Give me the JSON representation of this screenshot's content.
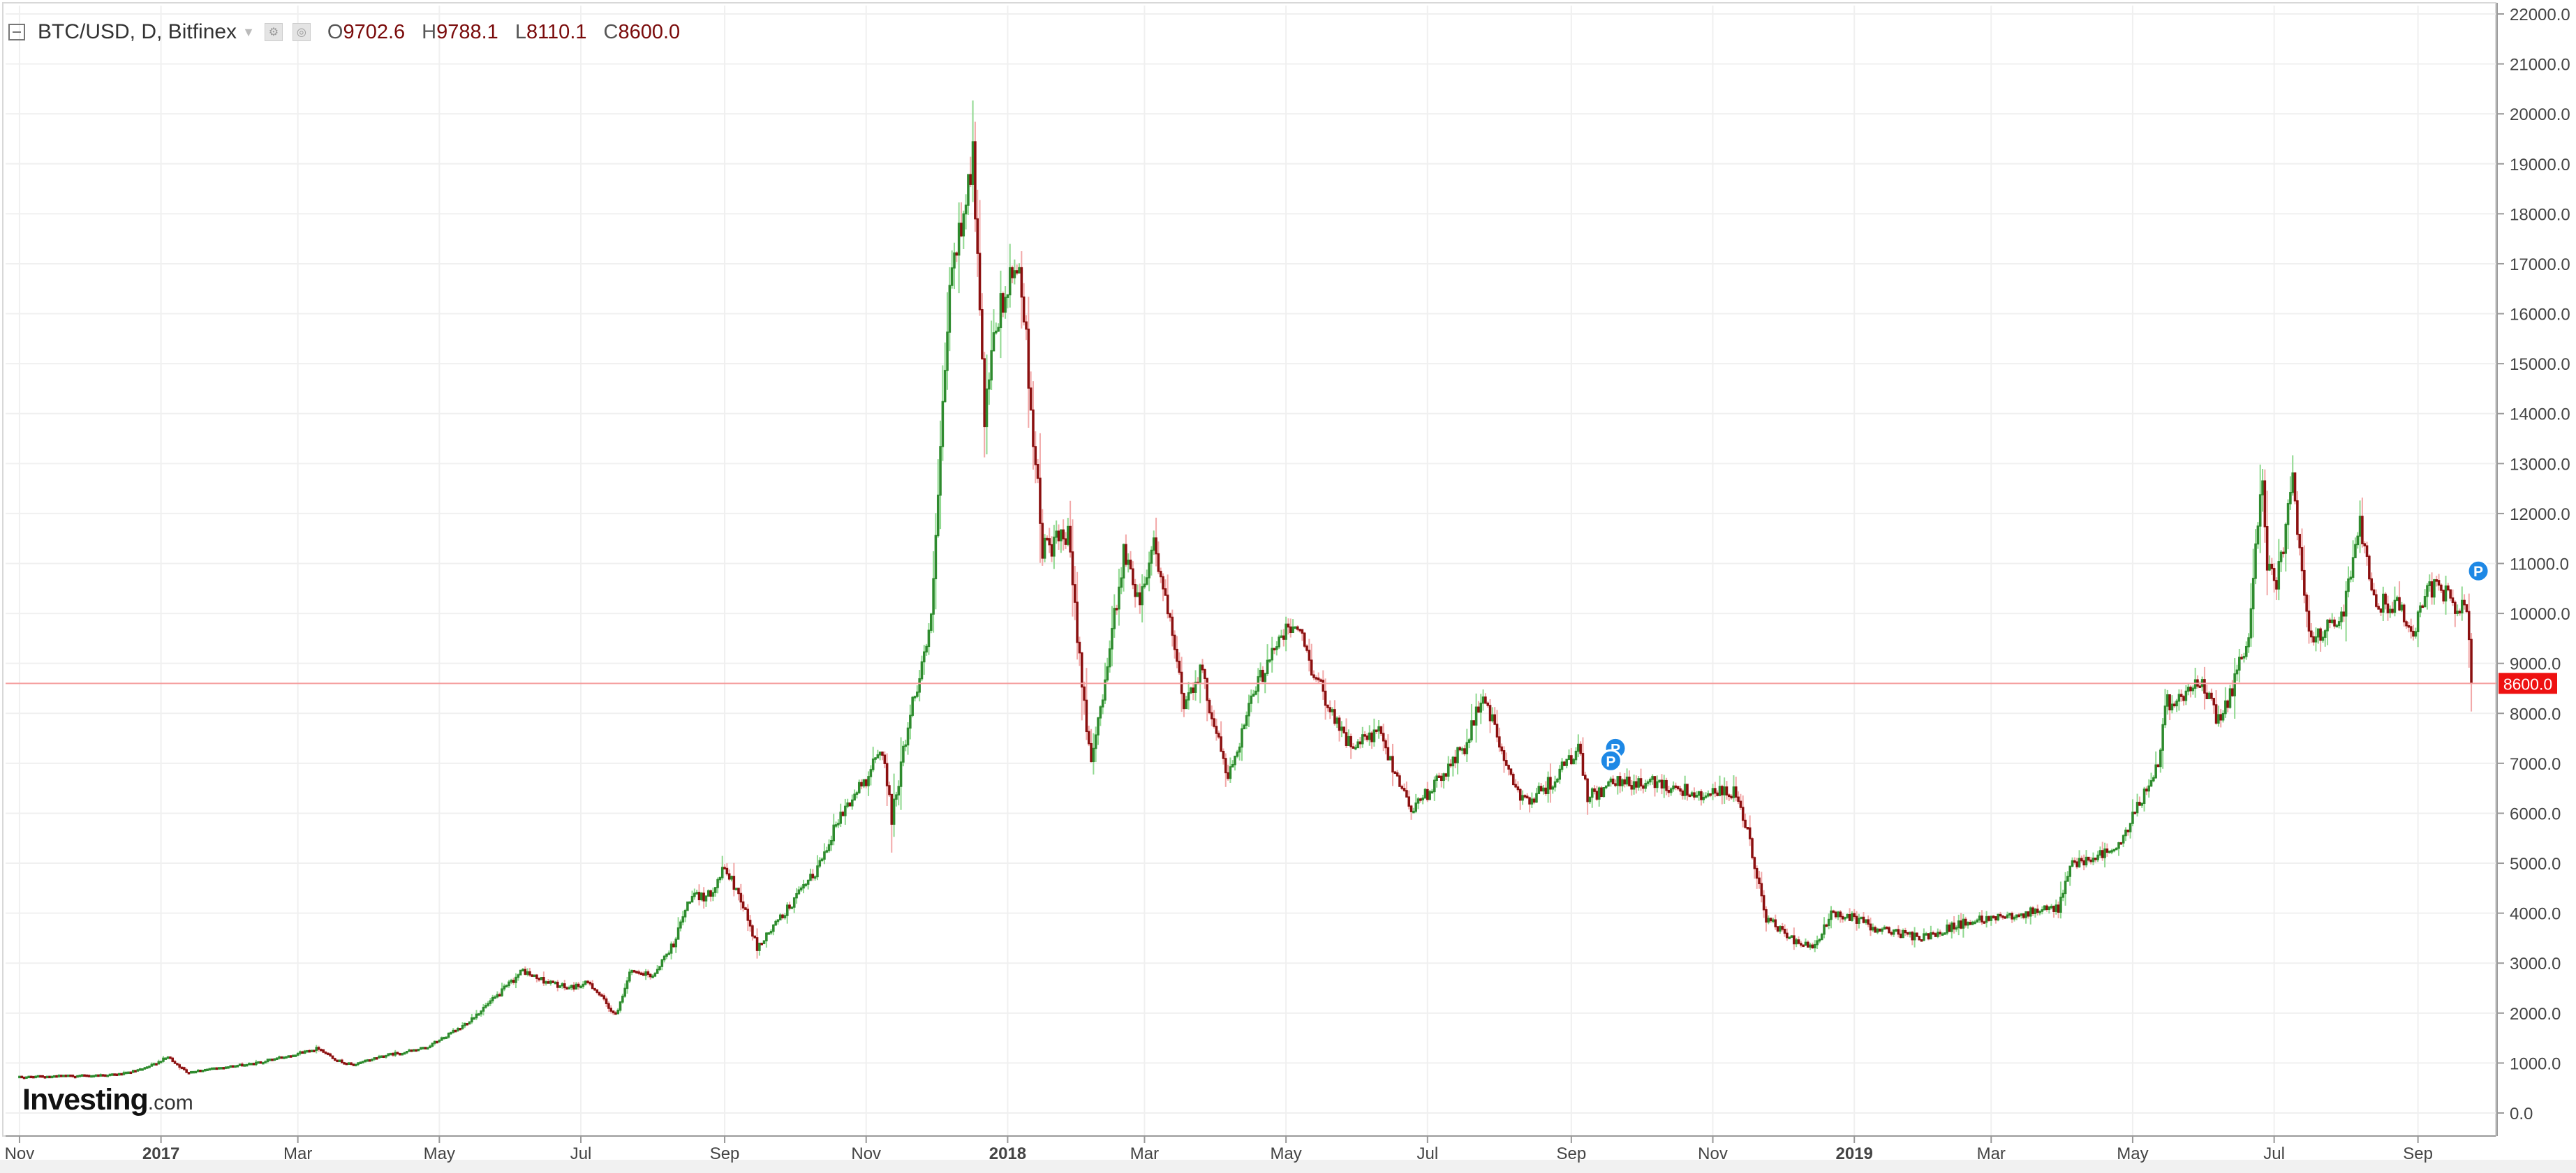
{
  "header": {
    "symbol": "BTC/USD, D, Bitfinex",
    "ohlc": [
      {
        "key": "O",
        "value": "9702.6"
      },
      {
        "key": "H",
        "value": "9788.1"
      },
      {
        "key": "L",
        "value": "8110.1"
      },
      {
        "key": "C",
        "value": "8600.0"
      }
    ]
  },
  "logo": {
    "main": "Investing",
    "suffix": ".com"
  },
  "colors": {
    "up": "#2e8b2e",
    "down": "#8b1010",
    "wick_up": "#8fd88f",
    "wick_down": "#f2a8a8",
    "price_line": "#f5a0a0",
    "price_label_bg": "#ee1111",
    "marker": "#1e88e5",
    "grid": "#f0f0f0",
    "axis_text": "#444444"
  },
  "chart_data": {
    "type": "candlestick",
    "title": "BTC/USD, D, Bitfinex",
    "xlabel": "",
    "ylabel": "",
    "ylim": [
      -500,
      22200
    ],
    "yticks": [
      "0.0",
      "1000.0",
      "2000.0",
      "3000.0",
      "4000.0",
      "5000.0",
      "6000.0",
      "7000.0",
      "8000.0",
      "9000.0",
      "10000.0",
      "11000.0",
      "12000.0",
      "13000.0",
      "14000.0",
      "15000.0",
      "16000.0",
      "17000.0",
      "18000.0",
      "19000.0",
      "20000.0",
      "21000.0",
      "22000.0"
    ],
    "xticks": [
      {
        "label": "Nov",
        "date": "2016-11-01",
        "bold": false
      },
      {
        "label": "2017",
        "date": "2017-01-01",
        "bold": true
      },
      {
        "label": "Mar",
        "date": "2017-03-01",
        "bold": false
      },
      {
        "label": "May",
        "date": "2017-05-01",
        "bold": false
      },
      {
        "label": "Jul",
        "date": "2017-07-01",
        "bold": false
      },
      {
        "label": "Sep",
        "date": "2017-09-01",
        "bold": false
      },
      {
        "label": "Nov",
        "date": "2017-11-01",
        "bold": false
      },
      {
        "label": "2018",
        "date": "2018-01-01",
        "bold": true
      },
      {
        "label": "Mar",
        "date": "2018-03-01",
        "bold": false
      },
      {
        "label": "May",
        "date": "2018-05-01",
        "bold": false
      },
      {
        "label": "Jul",
        "date": "2018-07-01",
        "bold": false
      },
      {
        "label": "Sep",
        "date": "2018-09-01",
        "bold": false
      },
      {
        "label": "Nov",
        "date": "2018-11-01",
        "bold": false
      },
      {
        "label": "2019",
        "date": "2019-01-01",
        "bold": true
      },
      {
        "label": "Mar",
        "date": "2019-03-01",
        "bold": false
      },
      {
        "label": "May",
        "date": "2019-05-01",
        "bold": false
      },
      {
        "label": "Jul",
        "date": "2019-07-01",
        "bold": false
      },
      {
        "label": "Sep",
        "date": "2019-09-01",
        "bold": false
      }
    ],
    "current_price": {
      "value": 8600,
      "label": "8600.0"
    },
    "markers": [
      {
        "label": "P",
        "date": "2018-09-17",
        "value": 7300
      },
      {
        "label": "P",
        "date": "2018-09-15",
        "value": 7050
      },
      {
        "label": "P",
        "date": "2019-09-24",
        "value": 10850
      }
    ],
    "series": [
      {
        "date": "2016-11-01",
        "close": 720
      },
      {
        "date": "2016-11-15",
        "close": 740
      },
      {
        "date": "2016-12-01",
        "close": 750
      },
      {
        "date": "2016-12-15",
        "close": 780
      },
      {
        "date": "2016-12-25",
        "close": 890
      },
      {
        "date": "2017-01-04",
        "close": 1120
      },
      {
        "date": "2017-01-12",
        "close": 820
      },
      {
        "date": "2017-01-25",
        "close": 900
      },
      {
        "date": "2017-02-10",
        "close": 990
      },
      {
        "date": "2017-02-25",
        "close": 1150
      },
      {
        "date": "2017-03-10",
        "close": 1300
      },
      {
        "date": "2017-03-18",
        "close": 1050
      },
      {
        "date": "2017-03-25",
        "close": 960
      },
      {
        "date": "2017-04-05",
        "close": 1130
      },
      {
        "date": "2017-04-25",
        "close": 1300
      },
      {
        "date": "2017-05-10",
        "close": 1700
      },
      {
        "date": "2017-05-25",
        "close": 2300
      },
      {
        "date": "2017-06-06",
        "close": 2850
      },
      {
        "date": "2017-06-12",
        "close": 2700
      },
      {
        "date": "2017-06-25",
        "close": 2500
      },
      {
        "date": "2017-07-05",
        "close": 2600
      },
      {
        "date": "2017-07-16",
        "close": 1950
      },
      {
        "date": "2017-07-22",
        "close": 2800
      },
      {
        "date": "2017-08-01",
        "close": 2750
      },
      {
        "date": "2017-08-10",
        "close": 3400
      },
      {
        "date": "2017-08-17",
        "close": 4300
      },
      {
        "date": "2017-08-25",
        "close": 4350
      },
      {
        "date": "2017-09-01",
        "close": 4900
      },
      {
        "date": "2017-09-08",
        "close": 4300
      },
      {
        "date": "2017-09-15",
        "close": 3300
      },
      {
        "date": "2017-09-25",
        "close": 3900
      },
      {
        "date": "2017-10-10",
        "close": 4800
      },
      {
        "date": "2017-10-20",
        "close": 5900
      },
      {
        "date": "2017-11-01",
        "close": 6700
      },
      {
        "date": "2017-11-08",
        "close": 7300
      },
      {
        "date": "2017-11-12",
        "close": 5900
      },
      {
        "date": "2017-11-20",
        "close": 8000
      },
      {
        "date": "2017-11-29",
        "close": 9800
      },
      {
        "date": "2017-12-07",
        "close": 16500
      },
      {
        "date": "2017-12-17",
        "close": 19200
      },
      {
        "date": "2017-12-22",
        "close": 13800
      },
      {
        "date": "2017-12-27",
        "close": 15800
      },
      {
        "date": "2018-01-06",
        "close": 17100
      },
      {
        "date": "2018-01-16",
        "close": 11300
      },
      {
        "date": "2018-01-27",
        "close": 11500
      },
      {
        "date": "2018-02-02",
        "close": 8700
      },
      {
        "date": "2018-02-06",
        "close": 6900
      },
      {
        "date": "2018-02-20",
        "close": 11200
      },
      {
        "date": "2018-02-27",
        "close": 10300
      },
      {
        "date": "2018-03-05",
        "close": 11500
      },
      {
        "date": "2018-03-18",
        "close": 8200
      },
      {
        "date": "2018-03-25",
        "close": 8900
      },
      {
        "date": "2018-04-06",
        "close": 6700
      },
      {
        "date": "2018-04-15",
        "close": 8100
      },
      {
        "date": "2018-04-25",
        "close": 9300
      },
      {
        "date": "2018-05-05",
        "close": 9800
      },
      {
        "date": "2018-05-15",
        "close": 8600
      },
      {
        "date": "2018-05-29",
        "close": 7300
      },
      {
        "date": "2018-06-10",
        "close": 7600
      },
      {
        "date": "2018-06-24",
        "close": 6100
      },
      {
        "date": "2018-07-05",
        "close": 6600
      },
      {
        "date": "2018-07-18",
        "close": 7400
      },
      {
        "date": "2018-07-25",
        "close": 8400
      },
      {
        "date": "2018-08-08",
        "close": 6400
      },
      {
        "date": "2018-08-15",
        "close": 6300
      },
      {
        "date": "2018-08-25",
        "close": 6700
      },
      {
        "date": "2018-09-04",
        "close": 7300
      },
      {
        "date": "2018-09-08",
        "close": 6300
      },
      {
        "date": "2018-09-20",
        "close": 6600
      },
      {
        "date": "2018-10-10",
        "close": 6600
      },
      {
        "date": "2018-10-25",
        "close": 6400
      },
      {
        "date": "2018-11-10",
        "close": 6400
      },
      {
        "date": "2018-11-16",
        "close": 5600
      },
      {
        "date": "2018-11-24",
        "close": 3900
      },
      {
        "date": "2018-12-07",
        "close": 3400
      },
      {
        "date": "2018-12-15",
        "close": 3300
      },
      {
        "date": "2018-12-22",
        "close": 4000
      },
      {
        "date": "2019-01-01",
        "close": 3900
      },
      {
        "date": "2019-01-10",
        "close": 3700
      },
      {
        "date": "2019-01-30",
        "close": 3500
      },
      {
        "date": "2019-02-10",
        "close": 3700
      },
      {
        "date": "2019-02-25",
        "close": 3900
      },
      {
        "date": "2019-03-15",
        "close": 4000
      },
      {
        "date": "2019-03-30",
        "close": 4100
      },
      {
        "date": "2019-04-05",
        "close": 5000
      },
      {
        "date": "2019-04-25",
        "close": 5300
      },
      {
        "date": "2019-05-12",
        "close": 7000
      },
      {
        "date": "2019-05-15",
        "close": 8200
      },
      {
        "date": "2019-05-30",
        "close": 8600
      },
      {
        "date": "2019-06-08",
        "close": 7800
      },
      {
        "date": "2019-06-20",
        "close": 9500
      },
      {
        "date": "2019-06-26",
        "close": 12900
      },
      {
        "date": "2019-06-28",
        "close": 11000
      },
      {
        "date": "2019-07-02",
        "close": 10500
      },
      {
        "date": "2019-07-09",
        "close": 12600
      },
      {
        "date": "2019-07-16",
        "close": 9500
      },
      {
        "date": "2019-07-25",
        "close": 9800
      },
      {
        "date": "2019-07-31",
        "close": 10100
      },
      {
        "date": "2019-08-07",
        "close": 11900
      },
      {
        "date": "2019-08-14",
        "close": 10200
      },
      {
        "date": "2019-08-24",
        "close": 10200
      },
      {
        "date": "2019-08-29",
        "close": 9500
      },
      {
        "date": "2019-09-05",
        "close": 10600
      },
      {
        "date": "2019-09-15",
        "close": 10300
      },
      {
        "date": "2019-09-22",
        "close": 10000
      },
      {
        "date": "2019-09-24",
        "close": 8600
      }
    ]
  }
}
